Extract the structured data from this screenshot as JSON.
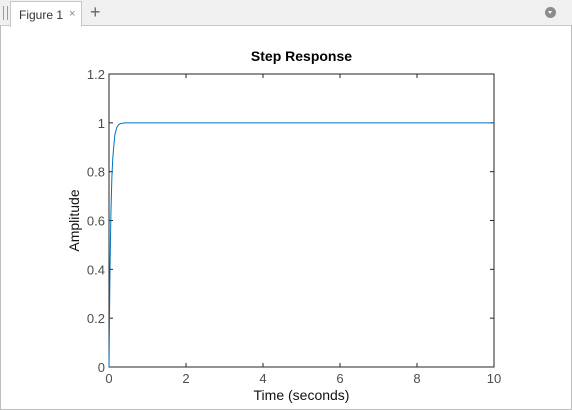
{
  "window": {
    "tab_label": "Figure 1",
    "close_glyph": "×",
    "add_glyph": "+",
    "close_icon": "close-icon",
    "add_icon": "plus-icon",
    "menu_icon": "chevron-down-circle-icon"
  },
  "chart_data": {
    "type": "line",
    "title": "Step Response",
    "xlabel": "Time (seconds)",
    "ylabel": "Amplitude",
    "xlim": [
      0,
      10
    ],
    "ylim": [
      0,
      1.2
    ],
    "xticks": [
      0,
      2,
      4,
      6,
      8,
      10
    ],
    "xtick_labels": [
      "0",
      "2",
      "4",
      "6",
      "8",
      "10"
    ],
    "yticks": [
      0,
      0.2,
      0.4,
      0.6,
      0.8,
      1,
      1.2
    ],
    "ytick_labels": [
      "0",
      "0.2",
      "0.4",
      "0.6",
      "0.8",
      "1",
      "1.2"
    ],
    "grid": false,
    "line_color": "#0072bd",
    "series": [
      {
        "x": [
          0,
          0.025,
          0.05,
          0.075,
          0.1,
          0.15,
          0.2,
          0.25,
          0.3,
          0.4,
          0.5,
          0.6,
          0.8,
          1,
          1.5,
          2,
          3,
          4,
          5,
          6,
          7,
          8,
          9,
          10
        ],
        "y": [
          0,
          0.39,
          0.63,
          0.78,
          0.86,
          0.95,
          0.98,
          0.993,
          0.997,
          0.9997,
          1,
          1,
          1,
          1,
          1,
          1,
          1,
          1,
          1,
          1,
          1,
          1,
          1,
          1
        ]
      }
    ]
  }
}
